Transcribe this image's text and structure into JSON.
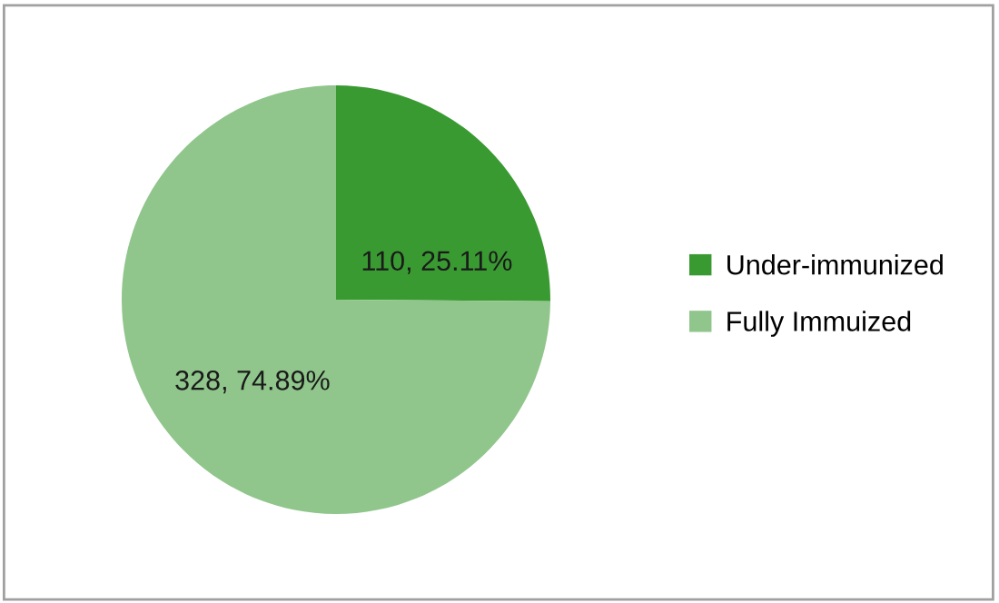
{
  "chart_data": {
    "type": "pie",
    "categories": [
      "Under-immunized",
      "Fully Immuized"
    ],
    "values": [
      110,
      328
    ],
    "colors": [
      "#3a9a32",
      "#90c68c"
    ],
    "value_labels": [
      "110, 25.11%",
      "328, 74.89%"
    ],
    "legend": "right"
  }
}
